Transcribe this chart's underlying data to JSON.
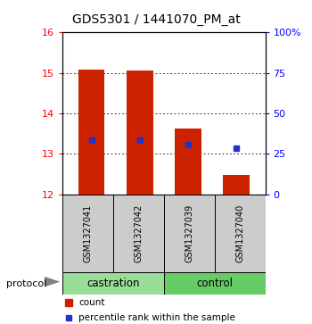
{
  "title": "GDS5301 / 1441070_PM_at",
  "samples": [
    "GSM1327041",
    "GSM1327042",
    "GSM1327039",
    "GSM1327040"
  ],
  "groups": [
    "castration",
    "castration",
    "control",
    "control"
  ],
  "bar_bottoms": [
    12.0,
    12.0,
    12.0,
    12.0
  ],
  "bar_tops": [
    15.08,
    15.05,
    13.62,
    12.48
  ],
  "percentile_values": [
    13.35,
    13.35,
    13.22,
    13.15
  ],
  "ylim_left": [
    12,
    16
  ],
  "ylim_right": [
    0,
    100
  ],
  "yticks_left": [
    12,
    13,
    14,
    15,
    16
  ],
  "yticks_right": [
    0,
    25,
    50,
    75,
    100
  ],
  "ytick_labels_right": [
    "0",
    "25",
    "50",
    "75",
    "100%"
  ],
  "bar_color": "#cc2200",
  "percentile_color": "#2233cc",
  "sample_box_color": "#cccccc",
  "castration_color": "#99dd99",
  "control_color": "#66cc66",
  "group_label_castration": "castration",
  "group_label_control": "control",
  "protocol_label": "protocol",
  "legend_count": "count",
  "legend_percentile": "percentile rank within the sample",
  "background_color": "#ffffff",
  "bar_width": 0.55
}
